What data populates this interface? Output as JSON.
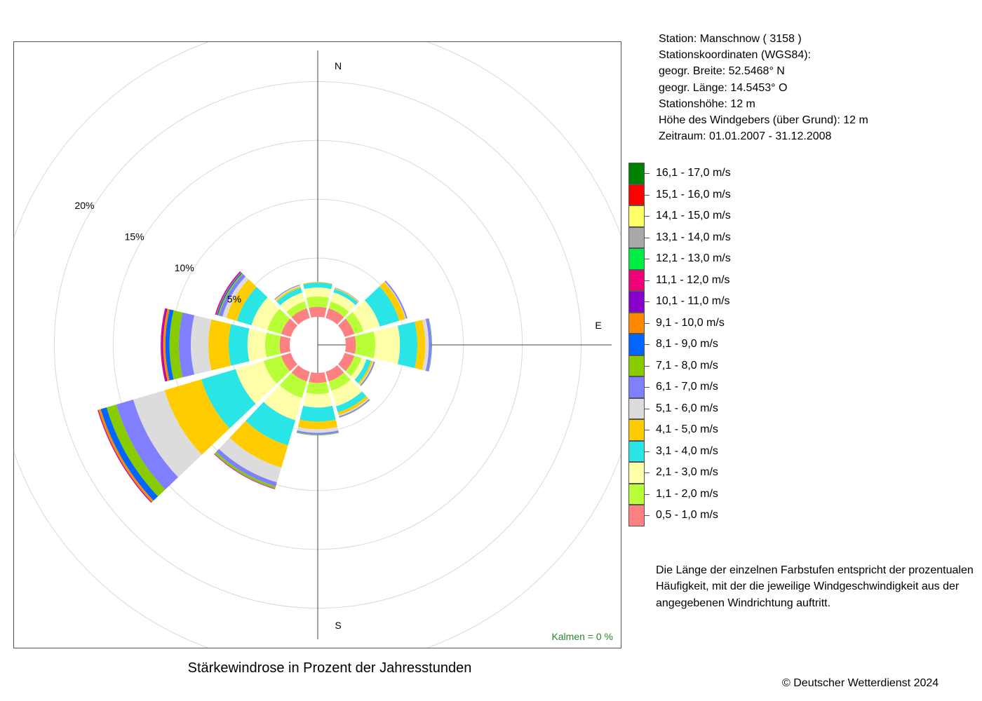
{
  "station": {
    "station_label": "Station:",
    "station_name": "Manschnow  ( 3158 )",
    "coords_label": "Stationskoordinaten (WGS84):",
    "lat": "geogr. Breite: 52.5468° N",
    "lon": "geogr. Länge: 14.5453° O",
    "height": "Stationshöhe: 12 m",
    "anemometer": "Höhe des Windgebers (über Grund): 12 m",
    "period": "Zeitraum: 01.01.2007 - 31.12.2008"
  },
  "legend": [
    {
      "label": "16,1 - 17,0 m/s",
      "color": "#008000"
    },
    {
      "label": "15,1 - 16,0 m/s",
      "color": "#ff0000"
    },
    {
      "label": "14,1 - 15,0 m/s",
      "color": "#ffff66"
    },
    {
      "label": "13,1 - 14,0 m/s",
      "color": "#a9a9a9"
    },
    {
      "label": "12,1 - 13,0 m/s",
      "color": "#00ee44"
    },
    {
      "label": "11,1 - 12,0 m/s",
      "color": "#ee0077"
    },
    {
      "label": "10,1 - 11,0 m/s",
      "color": "#8800cc"
    },
    {
      "label": "9,1 - 10,0 m/s",
      "color": "#ff8800"
    },
    {
      "label": "8,1 - 9,0 m/s",
      "color": "#0066ff"
    },
    {
      "label": "7,1 - 8,0 m/s",
      "color": "#88cc00"
    },
    {
      "label": "6,1 - 7,0 m/s",
      "color": "#8080ff"
    },
    {
      "label": "5,1 - 6,0 m/s",
      "color": "#dcdcdc"
    },
    {
      "label": "4,1 - 5,0 m/s",
      "color": "#ffcc00"
    },
    {
      "label": "3,1 - 4,0 m/s",
      "color": "#29e5e5"
    },
    {
      "label": "2,1 - 3,0 m/s",
      "color": "#ffffaa"
    },
    {
      "label": "1,1 - 2,0 m/s",
      "color": "#b8ff38"
    },
    {
      "label": "0,5 - 1,0 m/s",
      "color": "#ff8080"
    }
  ],
  "note": "Die Länge der einzelnen Farbstufen entspricht der prozentualen Häufigkeit, mit der die jeweilige Windgeschwindigkeit aus der angegebenen Windrichtung auftritt.",
  "caption": "Stärkewindrose in Prozent der Jahresstunden",
  "copyright": "© Deutscher Wetterdienst  2024",
  "chart_data": {
    "type": "wind-rose",
    "directions_deg": [
      0,
      30,
      60,
      90,
      120,
      150,
      180,
      210,
      240,
      270,
      300,
      330
    ],
    "compass_labels": {
      "n": "N",
      "e": "E",
      "s": "S"
    },
    "ring_values": [
      5,
      10,
      15,
      20
    ],
    "ring_labels": [
      "5%",
      "10%",
      "15%",
      "20%"
    ],
    "calm_text": "Kalmen  =  0 %",
    "calm_color": "#228b22",
    "values_percent": [
      [
        0.86,
        0.87,
        0.76,
        0.42,
        0.05,
        0.02,
        0,
        0,
        0,
        0,
        0,
        0,
        0,
        0,
        0,
        0,
        0
      ],
      [
        0.86,
        0.62,
        0.8,
        0.3,
        0.08,
        0.02,
        0.03,
        0,
        0,
        0,
        0,
        0,
        0,
        0,
        0,
        0,
        0
      ],
      [
        0.86,
        0.81,
        1.45,
        1.72,
        0.55,
        0.06,
        0.12,
        0,
        0,
        0,
        0,
        0,
        0,
        0,
        0,
        0,
        0
      ],
      [
        0.86,
        1.65,
        2.09,
        1.48,
        0.67,
        0.3,
        0.22,
        0.03,
        0.02,
        0,
        0,
        0,
        0,
        0,
        0,
        0,
        0
      ],
      [
        0.86,
        0.64,
        0.43,
        0.41,
        0.16,
        0.07,
        0.1,
        0.03,
        0,
        0,
        0,
        0,
        0,
        0,
        0,
        0,
        0
      ],
      [
        0.86,
        0.82,
        1.39,
        0.53,
        0.25,
        0.1,
        0.1,
        0.03,
        0,
        0,
        0,
        0,
        0,
        0,
        0,
        0,
        0
      ],
      [
        0.86,
        0.94,
        1.14,
        1.2,
        0.65,
        0.3,
        0.15,
        0.05,
        0.02,
        0,
        0,
        0,
        0,
        0,
        0,
        0,
        0
      ],
      [
        0.86,
        1.46,
        1.98,
        2.23,
        1.97,
        1.31,
        0.35,
        0.17,
        0.02,
        0.02,
        0.02,
        0.03,
        0,
        0,
        0,
        0,
        0
      ],
      [
        0.86,
        1.56,
        2.47,
        3.04,
        3.26,
        2.78,
        1.5,
        0.86,
        0.52,
        0.2,
        0.05,
        0.03,
        0,
        0,
        0,
        0,
        0
      ],
      [
        0.86,
        1.23,
        1.5,
        1.6,
        1.72,
        1.49,
        1.02,
        0.79,
        0.35,
        0.2,
        0.1,
        0.1,
        0,
        0,
        0,
        0,
        0
      ],
      [
        0.86,
        1.23,
        1.4,
        1.29,
        0.94,
        0.35,
        0.3,
        0.1,
        0.1,
        0.05,
        0.05,
        0.05,
        0,
        0,
        0,
        0,
        0
      ],
      [
        0.86,
        0.62,
        0.77,
        0.43,
        0.12,
        0.1,
        0.05,
        0.03,
        0,
        0,
        0,
        0,
        0,
        0,
        0,
        0,
        0
      ]
    ]
  }
}
